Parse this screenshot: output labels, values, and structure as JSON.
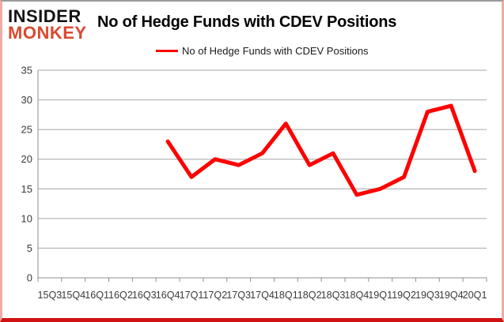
{
  "logo": {
    "line1": "INSIDER",
    "line2": "MONKEY"
  },
  "title": "No of Hedge Funds with CDEV Positions",
  "legend": {
    "label": "No of Hedge Funds with CDEV Positions",
    "color": "#ff0000"
  },
  "colors": {
    "line": "#ff0000",
    "logo_red": "#d9492f",
    "gridline": "#a6a6a6",
    "axis": "#8f8f8f",
    "axis_text": "#3a3a3a",
    "frame_bottom": "#d01312",
    "frame_side": "#efaca5",
    "frame_top": "#9a9a9a"
  },
  "chart_data": {
    "type": "line",
    "title": "No of Hedge Funds with CDEV Positions",
    "xlabel": "",
    "ylabel": "",
    "ylim": [
      0,
      35
    ],
    "ytick_step": 5,
    "grid": true,
    "legend_position": "top",
    "categories": [
      "15Q3",
      "15Q4",
      "16Q1",
      "16Q2",
      "16Q3",
      "16Q4",
      "17Q1",
      "17Q2",
      "17Q3",
      "17Q4",
      "18Q1",
      "18Q2",
      "18Q3",
      "18Q4",
      "19Q1",
      "19Q2",
      "19Q3",
      "19Q4",
      "20Q1"
    ],
    "series": [
      {
        "name": "No of Hedge Funds with CDEV Positions",
        "color": "#ff0000",
        "values": [
          null,
          null,
          null,
          null,
          null,
          23,
          17,
          20,
          19,
          21,
          26,
          19,
          21,
          14,
          15,
          17,
          28,
          29,
          18
        ]
      }
    ]
  }
}
